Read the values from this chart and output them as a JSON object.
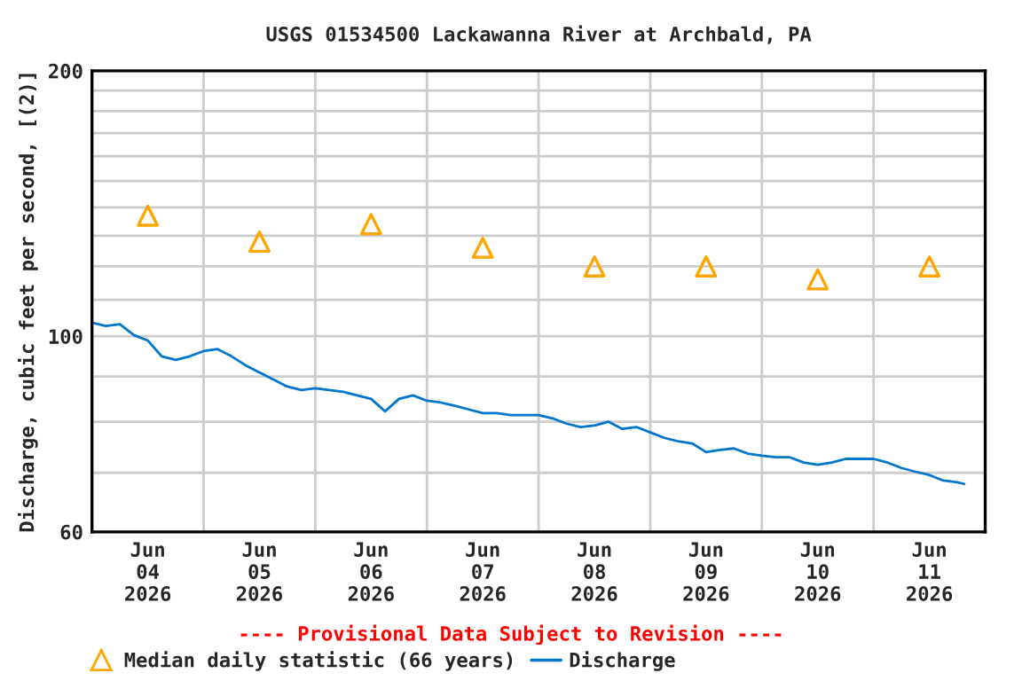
{
  "chart_data": {
    "type": "line",
    "title": "USGS 01534500 Lackawanna River at Archbald, PA",
    "ylabel": "Discharge, cubic feet per second, [(2)]",
    "annotations": [
      "---- Provisional Data Subject to Revision ----"
    ],
    "xlim": [
      "2026-06-04T00:00",
      "2026-06-12T00:00"
    ],
    "xticks": [
      {
        "value": "2026-06-04T00:00",
        "label": null
      },
      {
        "value": "2026-06-04T12:00",
        "label": "Jun\n04\n2026"
      },
      {
        "value": "2026-06-05T00:00",
        "label": null
      },
      {
        "value": "2026-06-05T12:00",
        "label": "Jun\n05\n2026"
      },
      {
        "value": "2026-06-06T00:00",
        "label": null
      },
      {
        "value": "2026-06-06T12:00",
        "label": "Jun\n06\n2026"
      },
      {
        "value": "2026-06-07T00:00",
        "label": null
      },
      {
        "value": "2026-06-07T12:00",
        "label": "Jun\n07\n2026"
      },
      {
        "value": "2026-06-08T00:00",
        "label": null
      },
      {
        "value": "2026-06-08T12:00",
        "label": "Jun\n08\n2026"
      },
      {
        "value": "2026-06-09T00:00",
        "label": null
      },
      {
        "value": "2026-06-09T12:00",
        "label": "Jun\n09\n2026"
      },
      {
        "value": "2026-06-10T00:00",
        "label": null
      },
      {
        "value": "2026-06-10T12:00",
        "label": "Jun\n10\n2026"
      },
      {
        "value": "2026-06-11T00:00",
        "label": null
      },
      {
        "value": "2026-06-11T12:00",
        "label": "Jun\n11\n2026"
      },
      {
        "value": "2026-06-12T00:00",
        "label": null
      }
    ],
    "ylim": [
      60,
      200
    ],
    "yticks": [
      60,
      {
        "value": 70,
        "label": null
      },
      {
        "value": 80,
        "label": null
      },
      {
        "value": 90,
        "label": null
      },
      100,
      {
        "value": 110,
        "label": null
      },
      {
        "value": 120,
        "label": null
      },
      {
        "value": 130,
        "label": null
      },
      {
        "value": 140,
        "label": null
      },
      {
        "value": 150,
        "label": null
      },
      {
        "value": 160,
        "label": null
      },
      {
        "value": 170,
        "label": null
      },
      {
        "value": 180,
        "label": null
      },
      {
        "value": 190,
        "label": null
      },
      200
    ],
    "log": "y",
    "grid": true,
    "legend": "bottom left",
    "series": [
      {
        "name": "Median daily statistic (66 years)",
        "type": "scatter",
        "marker": "triangle",
        "color": "#ffa500",
        "x": [
          "2026-06-04T12:00",
          "2026-06-05T12:00",
          "2026-06-06T12:00",
          "2026-06-07T12:00",
          "2026-06-08T12:00",
          "2026-06-09T12:00",
          "2026-06-10T12:00",
          "2026-06-11T12:00"
        ],
        "values": [
          137,
          128,
          134,
          126,
          120,
          120,
          116,
          120
        ]
      },
      {
        "name": "Discharge",
        "color": "#0077cc",
        "x": [
          "2026-06-04T00:00",
          "2026-06-04T03:00",
          "2026-06-04T06:00",
          "2026-06-04T09:00",
          "2026-06-04T12:00",
          "2026-06-04T15:00",
          "2026-06-04T18:00",
          "2026-06-04T21:00",
          "2026-06-05T00:00",
          "2026-06-05T03:00",
          "2026-06-05T06:00",
          "2026-06-05T09:00",
          "2026-06-05T12:00",
          "2026-06-05T15:00",
          "2026-06-05T18:00",
          "2026-06-05T21:00",
          "2026-06-06T00:00",
          "2026-06-06T03:00",
          "2026-06-06T06:00",
          "2026-06-06T09:00",
          "2026-06-06T12:00",
          "2026-06-06T15:00",
          "2026-06-06T18:00",
          "2026-06-06T21:00",
          "2026-06-07T00:00",
          "2026-06-07T03:00",
          "2026-06-07T06:00",
          "2026-06-07T09:00",
          "2026-06-07T12:00",
          "2026-06-07T15:00",
          "2026-06-07T18:00",
          "2026-06-07T21:00",
          "2026-06-08T00:00",
          "2026-06-08T03:00",
          "2026-06-08T06:00",
          "2026-06-08T09:00",
          "2026-06-08T12:00",
          "2026-06-08T15:00",
          "2026-06-08T18:00",
          "2026-06-08T21:00",
          "2026-06-09T00:00",
          "2026-06-09T03:00",
          "2026-06-09T06:00",
          "2026-06-09T09:00",
          "2026-06-09T12:00",
          "2026-06-09T15:00",
          "2026-06-09T18:00",
          "2026-06-09T21:00",
          "2026-06-10T00:00",
          "2026-06-10T03:00",
          "2026-06-10T06:00",
          "2026-06-10T09:00",
          "2026-06-10T12:00",
          "2026-06-10T15:00",
          "2026-06-10T18:00",
          "2026-06-10T21:00",
          "2026-06-11T00:00",
          "2026-06-11T03:00",
          "2026-06-11T06:00",
          "2026-06-11T09:00",
          "2026-06-11T12:00",
          "2026-06-11T15:00",
          "2026-06-11T18:00",
          "2026-06-11T19:30"
        ],
        "values": [
          103.6,
          102.7,
          103.2,
          100.3,
          98.9,
          94.9,
          94.0,
          94.9,
          96.2,
          96.7,
          94.9,
          92.7,
          91.0,
          89.3,
          87.7,
          86.9,
          87.3,
          86.9,
          86.5,
          85.7,
          84.9,
          82.2,
          84.9,
          85.7,
          84.5,
          84.1,
          83.4,
          82.6,
          81.8,
          81.8,
          81.4,
          81.4,
          81.4,
          80.7,
          79.6,
          78.9,
          79.2,
          80.0,
          78.5,
          78.9,
          77.8,
          76.7,
          76.0,
          75.6,
          73.9,
          74.3,
          74.6,
          73.6,
          73.2,
          72.9,
          72.9,
          71.9,
          71.5,
          71.9,
          72.6,
          72.6,
          72.6,
          71.9,
          70.9,
          70.2,
          69.6,
          68.6,
          68.3,
          68.0
        ]
      }
    ]
  }
}
